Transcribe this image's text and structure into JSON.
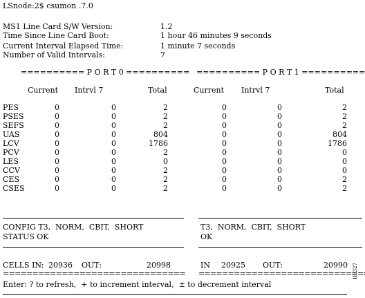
{
  "prompt": "LSnode:2$ csumon .7.0",
  "info": [
    {
      "label": "MS1 Line Card S/W Version:",
      "value": "1.2"
    },
    {
      "label": "Time Since Line Card Boot:",
      "value": "1 hour 46 minutes 9 seconds"
    },
    {
      "label": "Current Interval Elapsed Time:",
      "value": "1 minute 7 seconds"
    },
    {
      "label": "Number of Valid Intervals:",
      "value": "7"
    }
  ],
  "ports": [
    {
      "header": "========== P O R T 0 =========="
    },
    {
      "header": "========== P O R T 1 =========="
    }
  ],
  "columns": [
    "Current",
    "Intrvl 7",
    "Total"
  ],
  "rows": [
    {
      "label": "PES",
      "p0": [
        "0",
        "0",
        "2"
      ],
      "p1": [
        "0",
        "0",
        "2"
      ]
    },
    {
      "label": "PSES",
      "p0": [
        "0",
        "0",
        "2"
      ],
      "p1": [
        "0",
        "0",
        "2"
      ]
    },
    {
      "label": "SEFS",
      "p0": [
        "0",
        "0",
        "2"
      ],
      "p1": [
        "0",
        "0",
        "2"
      ]
    },
    {
      "label": "UAS",
      "p0": [
        "0",
        "0",
        "804"
      ],
      "p1": [
        "0",
        "0",
        "804"
      ]
    },
    {
      "label": "LCV",
      "p0": [
        "0",
        "0",
        "1786"
      ],
      "p1": [
        "0",
        "0",
        "1786"
      ]
    },
    {
      "label": "PCV",
      "p0": [
        "0",
        "0",
        "2"
      ],
      "p1": [
        "0",
        "0",
        "0"
      ]
    },
    {
      "label": "LES",
      "p0": [
        "0",
        "0",
        "0"
      ],
      "p1": [
        "0",
        "0",
        "0"
      ]
    },
    {
      "label": "CCV",
      "p0": [
        "0",
        "0",
        "2"
      ],
      "p1": [
        "0",
        "0",
        "0"
      ]
    },
    {
      "label": "CES",
      "p0": [
        "0",
        "0",
        "2"
      ],
      "p1": [
        "0",
        "0",
        "2"
      ]
    },
    {
      "label": "CSES",
      "p0": [
        "0",
        "0",
        "2"
      ],
      "p1": [
        "0",
        "0",
        "2"
      ]
    }
  ],
  "config": {
    "p0_config": "CONFIG T3,  NORM,  CBIT,  SHORT",
    "p0_status": "STATUS OK",
    "p1_config": "T3,  NORM,  CBIT,  SHORT",
    "p1_status": "OK"
  },
  "cells": {
    "in_label": "CELLS IN:",
    "p0_in": "20936",
    "out_label": "OUT:",
    "p0_out": "20998",
    "p1_in_label": "IN",
    "p1_in": "20925",
    "p1_out_label": "OUT:",
    "p1_out": "20990"
  },
  "separator": "===============================",
  "footer": "Enter: ? to refresh,  + to increment interval,  ± to decrement interval",
  "figure_code": "H3327"
}
